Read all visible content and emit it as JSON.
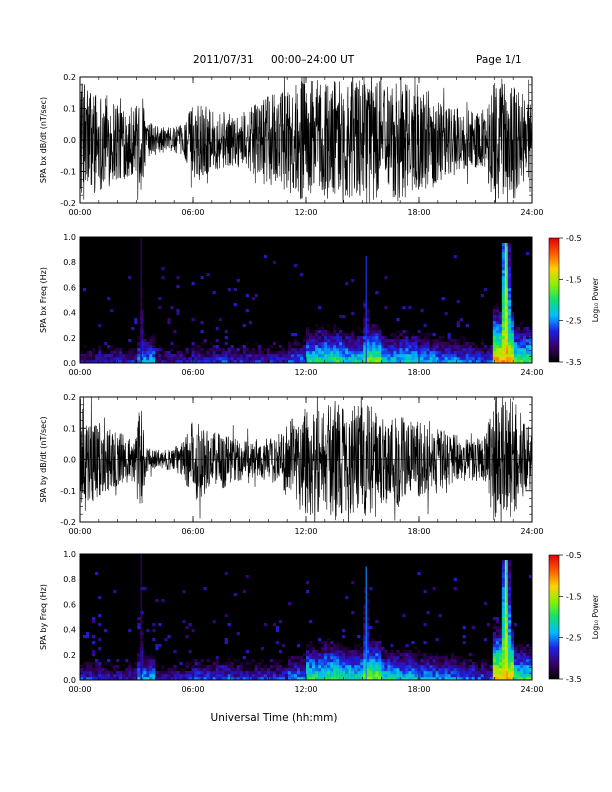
{
  "header": {
    "date": "2011/07/31",
    "time_range": "00:00–24:00 UT",
    "page": "Page 1/1"
  },
  "colorbar": {
    "label": "Log₁₀ Power",
    "tick_labels": [
      "-0.5",
      "-1.5",
      "-2.5",
      "-3.5"
    ],
    "range": [
      -3.5,
      -0.5
    ],
    "colors": [
      "#000000",
      "#3a0068",
      "#1e20e6",
      "#00bcff",
      "#10e070",
      "#8cf000",
      "#ffd000",
      "#ff5a00",
      "#e00000"
    ]
  },
  "chart_data": [
    {
      "type": "line",
      "ylabel": "SPA bx dB/dt (nT/sec)",
      "xlabel": "",
      "xlim": [
        0,
        24
      ],
      "ylim": [
        -0.2,
        0.2
      ],
      "x_tick_labels": [
        "00:00",
        "06:00",
        "12:00",
        "18:00",
        "24:00"
      ],
      "y_tick_labels": [
        "-0.2",
        "-0.1",
        "0.0",
        "0.1",
        "0.2"
      ],
      "grid": false,
      "x_hours": [
        0,
        0.5,
        1,
        1.5,
        2,
        2.5,
        3,
        3.2,
        3.5,
        4,
        4.5,
        5,
        5.5,
        6,
        6.5,
        7,
        7.5,
        8,
        8.5,
        9,
        9.5,
        10,
        10.5,
        11,
        11.5,
        12,
        12.5,
        13,
        13.5,
        14,
        14.5,
        15,
        15.5,
        16,
        16.5,
        17,
        17.5,
        18,
        18.5,
        19,
        19.5,
        20,
        20.5,
        21,
        21.5,
        22,
        22.5,
        23,
        23.5,
        24
      ],
      "amplitude_envelope": [
        0.2,
        0.18,
        0.16,
        0.15,
        0.14,
        0.12,
        0.11,
        0.2,
        0.06,
        0.05,
        0.04,
        0.04,
        0.05,
        0.12,
        0.13,
        0.09,
        0.1,
        0.08,
        0.09,
        0.1,
        0.12,
        0.14,
        0.15,
        0.17,
        0.18,
        0.2,
        0.2,
        0.19,
        0.2,
        0.2,
        0.19,
        0.2,
        0.2,
        0.19,
        0.18,
        0.2,
        0.17,
        0.15,
        0.16,
        0.14,
        0.12,
        0.11,
        0.1,
        0.09,
        0.1,
        0.2,
        0.2,
        0.2,
        0.15,
        0.12
      ]
    },
    {
      "type": "heatmap",
      "ylabel": "SPA bx Freq (Hz)",
      "xlabel": "",
      "xlim": [
        0,
        24
      ],
      "ylim": [
        0,
        1
      ],
      "x_tick_labels": [
        "00:00",
        "06:00",
        "12:00",
        "18:00",
        "24:00"
      ],
      "y_tick_labels": [
        "0.0",
        "0.2",
        "0.4",
        "0.6",
        "0.8",
        "1.0"
      ],
      "value_unit": "log10 power",
      "background_level": -3.5,
      "low_freq_band_power_by_hour": [
        -2.9,
        -2.8,
        -2.8,
        -2.3,
        -2.9,
        -2.9,
        -2.7,
        -2.7,
        -2.8,
        -2.8,
        -2.8,
        -2.5,
        -2.0,
        -1.9,
        -2.1,
        -1.7,
        -2.2,
        -2.1,
        -2.3,
        -2.4,
        -2.5,
        -2.6,
        -1.0,
        -1.8
      ],
      "bright_features": [
        {
          "time_hours": 3.25,
          "freq_max_hz": 1.0,
          "peak_power": -2.6
        },
        {
          "time_hours": 15.2,
          "freq_max_hz": 0.85,
          "peak_power": -2.2
        },
        {
          "time_hours": 22.6,
          "freq_max_hz": 0.95,
          "peak_power": -0.8
        }
      ]
    },
    {
      "type": "line",
      "ylabel": "SPA by dB/dt (nT/sec)",
      "xlabel": "",
      "xlim": [
        0,
        24
      ],
      "ylim": [
        -0.2,
        0.2
      ],
      "x_tick_labels": [
        "00:00",
        "06:00",
        "12:00",
        "18:00",
        "24:00"
      ],
      "y_tick_labels": [
        "-0.2",
        "-0.1",
        "0.0",
        "0.1",
        "0.2"
      ],
      "grid": false,
      "x_hours": [
        0,
        0.5,
        1,
        1.5,
        2,
        2.5,
        3,
        3.2,
        3.5,
        4,
        4.5,
        5,
        5.5,
        6,
        6.5,
        7,
        7.5,
        8,
        8.5,
        9,
        9.5,
        10,
        10.5,
        11,
        11.5,
        12,
        12.5,
        13,
        13.5,
        14,
        14.5,
        15,
        15.5,
        16,
        16.5,
        17,
        17.5,
        18,
        18.5,
        19,
        19.5,
        20,
        20.5,
        21,
        21.5,
        22,
        22.5,
        23,
        23.5,
        24
      ],
      "amplitude_envelope": [
        0.2,
        0.15,
        0.12,
        0.1,
        0.09,
        0.08,
        0.07,
        0.2,
        0.04,
        0.03,
        0.03,
        0.04,
        0.06,
        0.14,
        0.12,
        0.09,
        0.1,
        0.08,
        0.07,
        0.06,
        0.06,
        0.07,
        0.08,
        0.12,
        0.14,
        0.2,
        0.18,
        0.16,
        0.2,
        0.18,
        0.17,
        0.19,
        0.17,
        0.15,
        0.14,
        0.16,
        0.13,
        0.12,
        0.11,
        0.1,
        0.09,
        0.08,
        0.07,
        0.07,
        0.08,
        0.2,
        0.2,
        0.2,
        0.12,
        0.1
      ]
    },
    {
      "type": "heatmap",
      "ylabel": "SPA by Freq (Hz)",
      "xlabel": "Universal Time (hh:mm)",
      "xlim": [
        0,
        24
      ],
      "ylim": [
        0,
        1
      ],
      "x_tick_labels": [
        "00:00",
        "06:00",
        "12:00",
        "18:00",
        "24:00"
      ],
      "y_tick_labels": [
        "0.0",
        "0.2",
        "0.4",
        "0.6",
        "0.8",
        "1.0"
      ],
      "value_unit": "log10 power",
      "background_level": -3.5,
      "low_freq_band_power_by_hour": [
        -2.7,
        -2.8,
        -2.8,
        -2.3,
        -2.9,
        -2.8,
        -2.6,
        -2.6,
        -2.7,
        -2.7,
        -2.7,
        -2.4,
        -1.9,
        -1.8,
        -2.0,
        -1.6,
        -2.1,
        -2.2,
        -2.3,
        -2.4,
        -2.5,
        -2.6,
        -1.1,
        -1.9
      ],
      "bright_features": [
        {
          "time_hours": 3.25,
          "freq_max_hz": 1.0,
          "peak_power": -2.6
        },
        {
          "time_hours": 15.2,
          "freq_max_hz": 0.9,
          "peak_power": -2.0
        },
        {
          "time_hours": 22.6,
          "freq_max_hz": 0.95,
          "peak_power": -0.9
        }
      ]
    }
  ]
}
